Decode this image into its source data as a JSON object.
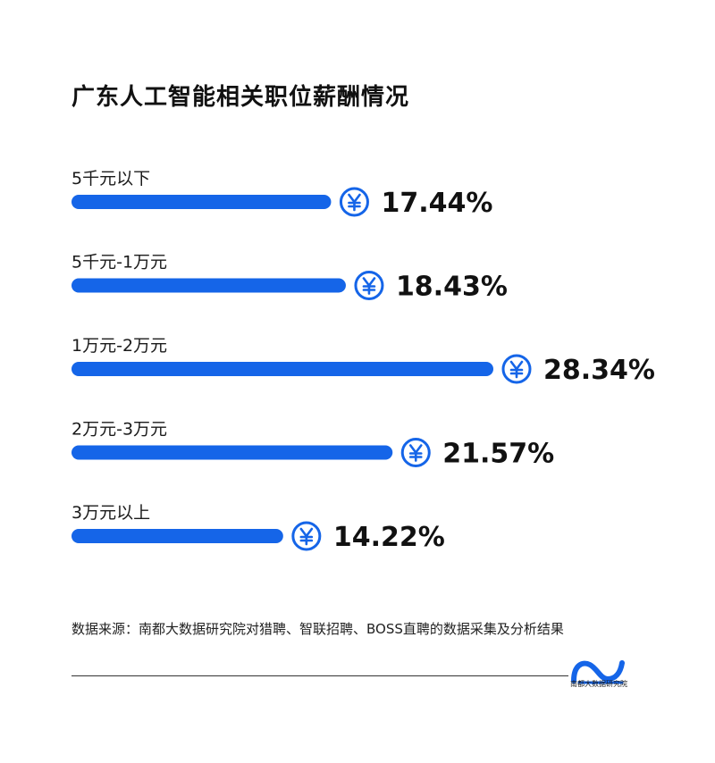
{
  "title": "广东人工智能相关职位薪酬情况",
  "chart_data": {
    "type": "bar",
    "orientation": "horizontal",
    "title": "广东人工智能相关职位薪酬情况",
    "categories": [
      "5千元以下",
      "5千元-1万元",
      "1万元-2万元",
      "2万元-3万元",
      "3万元以上"
    ],
    "values": [
      17.44,
      18.43,
      28.34,
      21.57,
      14.22
    ],
    "value_labels": [
      "17.44%",
      "18.43%",
      "28.34%",
      "21.57%",
      "14.22%"
    ],
    "unit": "%",
    "bar_color": "#1565e8",
    "icon": "yuan-coin-icon"
  },
  "source": "数据来源：南都大数据研究院对猎聘、智联招聘、BOSS直聘的数据采集及分析结果",
  "logo": {
    "icon": "nandu-logo-icon",
    "text": "南都大数据研究院",
    "color": "#1565e8"
  }
}
